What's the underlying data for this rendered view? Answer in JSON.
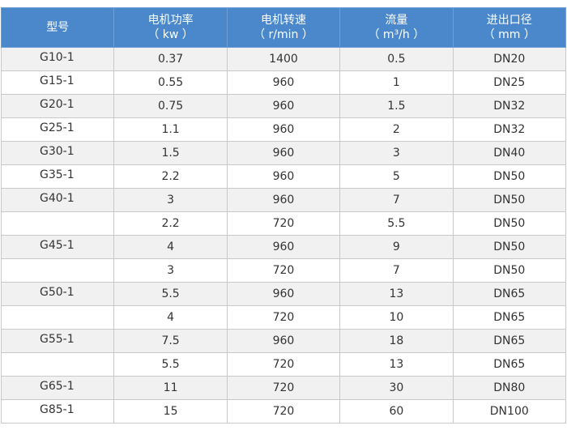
{
  "headers": [
    {
      "line1": "型号",
      "line2": ""
    },
    {
      "line1": "电机功率",
      "line2": "（ kw ）"
    },
    {
      "line1": "电机转速",
      "line2": "（ r/min ）"
    },
    {
      "line1": "流量",
      "line2": "（ m³/h ）"
    },
    {
      "line1": "进出口径",
      "line2": "（ mm ）"
    }
  ],
  "rows": [
    [
      "G10-1",
      "0.37",
      "1400",
      "0.5",
      "DN20"
    ],
    [
      "G15-1",
      "0.55",
      "960",
      "1",
      "DN25"
    ],
    [
      "G20-1",
      "0.75",
      "960",
      "1.5",
      "DN32"
    ],
    [
      "G25-1",
      "1.1",
      "960",
      "2",
      "DN32"
    ],
    [
      "G30-1",
      "1.5",
      "960",
      "3",
      "DN40"
    ],
    [
      "G35-1",
      "2.2",
      "960",
      "5",
      "DN50"
    ],
    [
      "G40-1",
      "3",
      "960",
      "7",
      "DN50"
    ],
    [
      "",
      "2.2",
      "720",
      "5.5",
      "DN50"
    ],
    [
      "G45-1",
      "4",
      "960",
      "9",
      "DN50"
    ],
    [
      "",
      "3",
      "720",
      "7",
      "DN50"
    ],
    [
      "G50-1",
      "5.5",
      "960",
      "13",
      "DN65"
    ],
    [
      "",
      "4",
      "720",
      "10",
      "DN65"
    ],
    [
      "G55-1",
      "7.5",
      "960",
      "18",
      "DN65"
    ],
    [
      "",
      "5.5",
      "720",
      "13",
      "DN65"
    ],
    [
      "G65-1",
      "11",
      "720",
      "30",
      "DN80"
    ],
    [
      "G85-1",
      "15",
      "720",
      "60",
      "DN100"
    ]
  ]
}
